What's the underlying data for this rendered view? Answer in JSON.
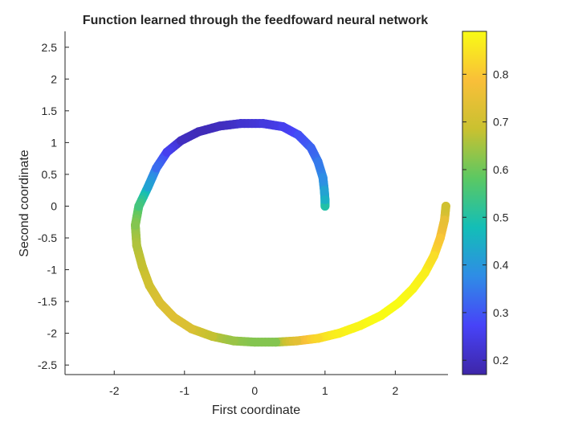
{
  "chart_data": {
    "type": "scatter",
    "title": "Function learned through the feedfoward neural network",
    "xlabel": "First coordinate",
    "ylabel": "Second coordinate",
    "xlim": [
      -2.7,
      2.75
    ],
    "ylim": [
      -2.65,
      2.75
    ],
    "xticks": [
      "-2",
      "-1",
      "0",
      "1",
      "2"
    ],
    "yticks": [
      "2.5",
      "2",
      "1.5",
      "1",
      "0.5",
      "0",
      "-0.5",
      "-1",
      "-1.5",
      "-2",
      "-2.5"
    ],
    "color_range": [
      0.17,
      0.89
    ],
    "colorbar_ticks": [
      "0.8",
      "0.7",
      "0.6",
      "0.5",
      "0.4",
      "0.3",
      "0.2"
    ],
    "colormap": [
      "#3e26a8",
      "#4743f8",
      "#2f8ce6",
      "#13beb7",
      "#5bc863",
      "#c9c130",
      "#f9bf39",
      "#f9fb15"
    ],
    "series": [
      {
        "x": [
          1.0,
          1.0,
          0.99,
          0.97,
          0.9,
          0.8,
          0.62,
          0.4,
          0.12,
          -0.2,
          -0.5,
          -0.8,
          -1.05,
          -1.25,
          -1.4,
          -1.52,
          -1.65,
          -1.7,
          -1.68,
          -1.6,
          -1.5,
          -1.35,
          -1.15,
          -0.9,
          -0.6,
          -0.3,
          0.0,
          0.3,
          0.6,
          0.9,
          1.2,
          1.5,
          1.8,
          2.05,
          2.25,
          2.42,
          2.55,
          2.64,
          2.7,
          2.72
        ],
        "y": [
          0.0,
          0.1,
          0.25,
          0.45,
          0.7,
          0.92,
          1.12,
          1.25,
          1.3,
          1.3,
          1.26,
          1.17,
          1.03,
          0.85,
          0.6,
          0.3,
          0.0,
          -0.3,
          -0.62,
          -0.95,
          -1.25,
          -1.52,
          -1.75,
          -1.93,
          -2.05,
          -2.12,
          -2.14,
          -2.14,
          -2.12,
          -2.08,
          -2.0,
          -1.88,
          -1.72,
          -1.52,
          -1.3,
          -1.05,
          -0.78,
          -0.5,
          -0.22,
          0.0
        ],
        "c": [
          0.5,
          0.45,
          0.42,
          0.38,
          0.35,
          0.32,
          0.29,
          0.26,
          0.24,
          0.22,
          0.2,
          0.19,
          0.2,
          0.26,
          0.33,
          0.42,
          0.55,
          0.62,
          0.66,
          0.68,
          0.7,
          0.72,
          0.73,
          0.72,
          0.68,
          0.64,
          0.62,
          0.62,
          0.74,
          0.83,
          0.87,
          0.88,
          0.89,
          0.89,
          0.88,
          0.87,
          0.84,
          0.8,
          0.75,
          0.7
        ]
      }
    ],
    "grid": false,
    "legend": "none"
  }
}
